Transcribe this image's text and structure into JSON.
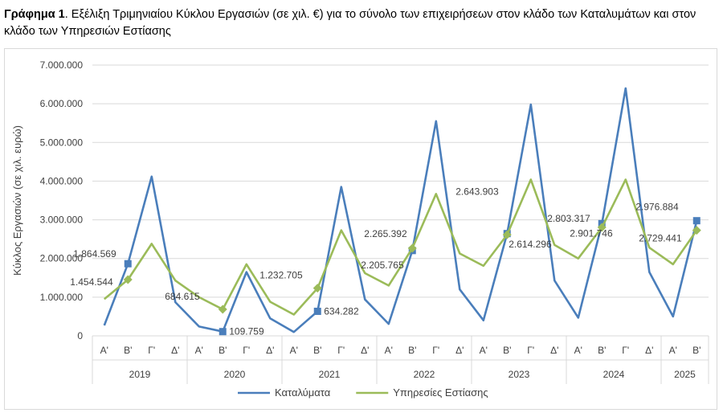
{
  "caption": {
    "label": "Γράφημα 1",
    "text": ". Εξέλιξη Τριμηνιαίου Κύκλου Εργασιών (σε χιλ. €) για το σύνολο των επιχειρήσεων στον κλάδο των Καταλυμάτων και στον κλάδο των Υπηρεσιών Εστίασης"
  },
  "chart_data": {
    "type": "line",
    "ylabel": "Κύκλος Εργασιών (σε χιλ. ευρώ)",
    "ylim": [
      0,
      7000000
    ],
    "yticks": [
      0,
      1000000,
      2000000,
      3000000,
      4000000,
      5000000,
      6000000,
      7000000
    ],
    "ytick_labels": [
      "0",
      "1.000.000",
      "2.000.000",
      "3.000.000",
      "4.000.000",
      "5.000.000",
      "6.000.000",
      "7.000.000"
    ],
    "grid": true,
    "legend_position": "bottom",
    "quarters": [
      "Α'",
      "Β'",
      "Γ'",
      "Δ'",
      "Α'",
      "Β'",
      "Γ'",
      "Δ'",
      "Α'",
      "Β'",
      "Γ'",
      "Δ'",
      "Α'",
      "Β'",
      "Γ'",
      "Δ'",
      "Α'",
      "Β'",
      "Γ'",
      "Δ'",
      "Α'",
      "Β'",
      "Γ'",
      "Δ'",
      "Α'",
      "Β'"
    ],
    "years": [
      {
        "label": "2019",
        "quarters": 4
      },
      {
        "label": "2020",
        "quarters": 4
      },
      {
        "label": "2021",
        "quarters": 4
      },
      {
        "label": "2022",
        "quarters": 4
      },
      {
        "label": "2023",
        "quarters": 4
      },
      {
        "label": "2024",
        "quarters": 4
      },
      {
        "label": "2025",
        "quarters": 2
      }
    ],
    "series": [
      {
        "name": "Καταλύματα",
        "color": "#4a7ebb",
        "marker": "square",
        "values": [
          270000,
          1864569,
          4120000,
          870000,
          240000,
          109759,
          1650000,
          450000,
          100000,
          634282,
          3850000,
          940000,
          310000,
          2205765,
          5550000,
          1200000,
          400000,
          2643903,
          5980000,
          1430000,
          470000,
          2901746,
          6400000,
          1650000,
          500000,
          2976884
        ],
        "labels": [
          {
            "index": 1,
            "text": "1.864.569"
          },
          {
            "index": 5,
            "text": "109.759"
          },
          {
            "index": 9,
            "text": "634.282"
          },
          {
            "index": 13,
            "text": "2.205.765"
          },
          {
            "index": 17,
            "text": "2.643.903"
          },
          {
            "index": 21,
            "text": "2.901.746"
          },
          {
            "index": 25,
            "text": "2.976.884"
          }
        ]
      },
      {
        "name": "Υπηρεσίες Εστίασης",
        "color": "#9bbb59",
        "marker": "diamond",
        "values": [
          950000,
          1454544,
          2380000,
          1430000,
          1000000,
          684615,
          1850000,
          880000,
          550000,
          1232705,
          2730000,
          1620000,
          1300000,
          2265392,
          3670000,
          2130000,
          1810000,
          2614296,
          4040000,
          2350000,
          2000000,
          2803317,
          4040000,
          2280000,
          1850000,
          2729441
        ],
        "labels": [
          {
            "index": 1,
            "text": "1.454.544"
          },
          {
            "index": 5,
            "text": "684.615"
          },
          {
            "index": 9,
            "text": "1.232.705"
          },
          {
            "index": 13,
            "text": "2.265.392"
          },
          {
            "index": 17,
            "text": "2.614.296"
          },
          {
            "index": 21,
            "text": "2.803.317"
          },
          {
            "index": 25,
            "text": "2.729.441"
          }
        ]
      }
    ]
  }
}
